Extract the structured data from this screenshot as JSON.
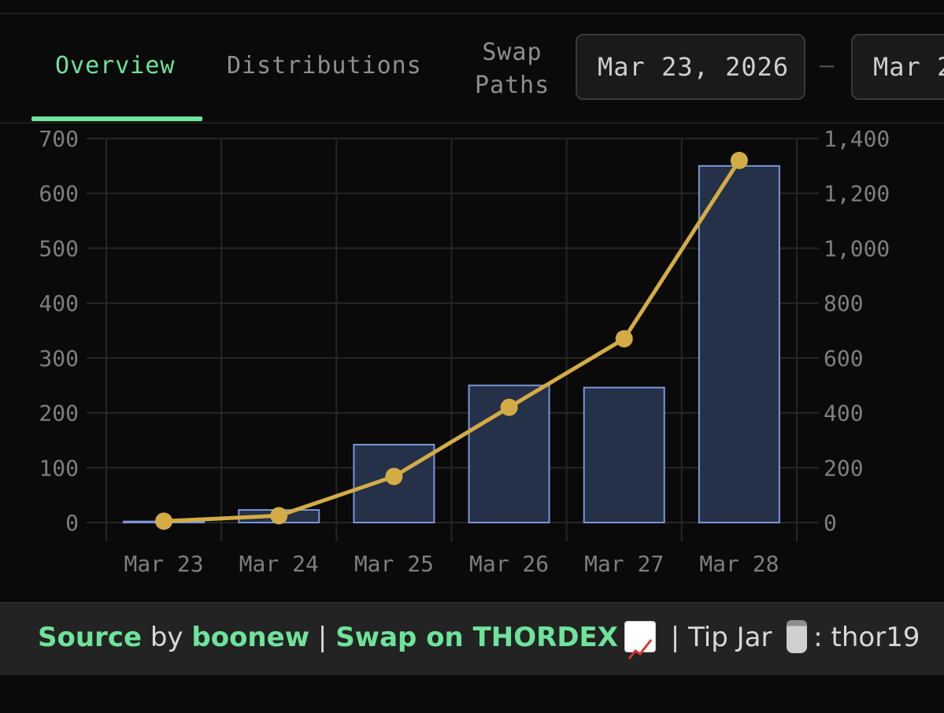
{
  "tabs": {
    "overview": "Overview",
    "distributions": "Distributions",
    "swap_paths_line1": "Swap",
    "swap_paths_line2": "Paths"
  },
  "date_range": {
    "start": "Mar 23, 2026",
    "end": "Mar 2",
    "separator": "–"
  },
  "chart_data": {
    "type": "bar",
    "categories": [
      "Mar 23",
      "Mar 24",
      "Mar 25",
      "Mar 26",
      "Mar 27",
      "Mar 28"
    ],
    "series": [
      {
        "name": "bars",
        "axis": "left",
        "type": "bar",
        "values": [
          2,
          23,
          142,
          250,
          246,
          650
        ]
      },
      {
        "name": "line",
        "axis": "right",
        "type": "line",
        "values": [
          5,
          25,
          168,
          420,
          670,
          1320
        ]
      }
    ],
    "left_axis": {
      "ylim": [
        0,
        700
      ],
      "ticks": [
        "0",
        "100",
        "200",
        "300",
        "400",
        "500",
        "600",
        "700"
      ]
    },
    "right_axis": {
      "ylim": [
        0,
        1400
      ],
      "ticks": [
        "0",
        "200",
        "400",
        "600",
        "800",
        "1,000",
        "1,200",
        "1,400"
      ]
    },
    "grid": true,
    "colors": {
      "bar_fill": "#243149",
      "bar_stroke": "#7b95d6",
      "line": "#d4ac45",
      "grid": "#262626"
    }
  },
  "footer": {
    "source": "Source",
    "by": " by ",
    "author": "boonew",
    "sep1": " | ",
    "swap": "Swap on THORDEX",
    "sep2": " | Tip Jar ",
    "address": ": thor19"
  },
  "colors": {
    "accent": "#6ee39a",
    "background": "#0a0a0a"
  }
}
